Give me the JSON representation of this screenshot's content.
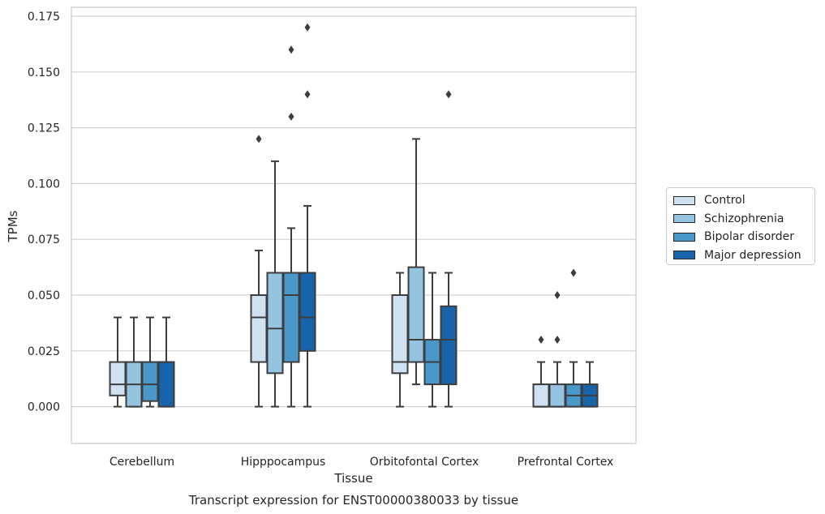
{
  "chart_data": {
    "type": "boxplot",
    "title": "",
    "caption": "Transcript expression for ENST00000380033 by tissue",
    "xlabel": "Tissue",
    "ylabel": "TPMs",
    "ylim": [
      -0.0165,
      0.179
    ],
    "yticks": [
      0.0,
      0.025,
      0.05,
      0.075,
      0.1,
      0.125,
      0.15,
      0.175
    ],
    "ytick_labels": [
      "0.000",
      "0.025",
      "0.050",
      "0.075",
      "0.100",
      "0.125",
      "0.150",
      "0.175"
    ],
    "grid": "horizontal",
    "legend_position": "right",
    "categories": [
      "Cerebellum",
      "Hipppocampus",
      "Orbitofontal Cortex",
      "Prefrontal Cortex"
    ],
    "series": [
      {
        "name": "Control",
        "color": "#d0e1f2",
        "boxes": [
          {
            "whislo": 0.0,
            "q1": 0.005,
            "med": 0.01,
            "q3": 0.02,
            "whishi": 0.04,
            "fliers": []
          },
          {
            "whislo": 0.0,
            "q1": 0.02,
            "med": 0.04,
            "q3": 0.05,
            "whishi": 0.07,
            "fliers": [
              0.12
            ]
          },
          {
            "whislo": 0.0,
            "q1": 0.015,
            "med": 0.02,
            "q3": 0.05,
            "whishi": 0.06,
            "fliers": []
          },
          {
            "whislo": 0.0,
            "q1": 0.0,
            "med": 0.0,
            "q3": 0.01,
            "whishi": 0.02,
            "fliers": [
              0.03
            ]
          }
        ]
      },
      {
        "name": "Schizophrenia",
        "color": "#94c4df",
        "boxes": [
          {
            "whislo": 0.0,
            "q1": 0.0,
            "med": 0.01,
            "q3": 0.02,
            "whishi": 0.04,
            "fliers": []
          },
          {
            "whislo": 0.0,
            "q1": 0.015,
            "med": 0.035,
            "q3": 0.06,
            "whishi": 0.11,
            "fliers": []
          },
          {
            "whislo": 0.01,
            "q1": 0.02,
            "med": 0.03,
            "q3": 0.0625,
            "whishi": 0.12,
            "fliers": []
          },
          {
            "whislo": 0.0,
            "q1": 0.0,
            "med": 0.0,
            "q3": 0.01,
            "whishi": 0.02,
            "fliers": [
              0.03,
              0.05
            ]
          }
        ]
      },
      {
        "name": "Bipolar disorder",
        "color": "#4a98c9",
        "boxes": [
          {
            "whislo": 0.0,
            "q1": 0.0025,
            "med": 0.01,
            "q3": 0.02,
            "whishi": 0.04,
            "fliers": []
          },
          {
            "whislo": 0.0,
            "q1": 0.02,
            "med": 0.05,
            "q3": 0.06,
            "whishi": 0.08,
            "fliers": [
              0.13,
              0.16
            ]
          },
          {
            "whislo": 0.0,
            "q1": 0.01,
            "med": 0.02,
            "q3": 0.03,
            "whishi": 0.06,
            "fliers": []
          },
          {
            "whislo": 0.0,
            "q1": 0.0,
            "med": 0.005,
            "q3": 0.01,
            "whishi": 0.02,
            "fliers": [
              0.06
            ]
          }
        ]
      },
      {
        "name": "Major depression",
        "color": "#1764ab",
        "boxes": [
          {
            "whislo": 0.0,
            "q1": 0.0,
            "med": 0.02,
            "q3": 0.02,
            "whishi": 0.04,
            "fliers": []
          },
          {
            "whislo": 0.0,
            "q1": 0.025,
            "med": 0.04,
            "q3": 0.06,
            "whishi": 0.09,
            "fliers": [
              0.14,
              0.17
            ]
          },
          {
            "whislo": 0.0,
            "q1": 0.01,
            "med": 0.03,
            "q3": 0.045,
            "whishi": 0.06,
            "fliers": [
              0.14
            ]
          },
          {
            "whislo": 0.0,
            "q1": 0.0,
            "med": 0.005,
            "q3": 0.01,
            "whishi": 0.02,
            "fliers": []
          }
        ]
      }
    ]
  }
}
